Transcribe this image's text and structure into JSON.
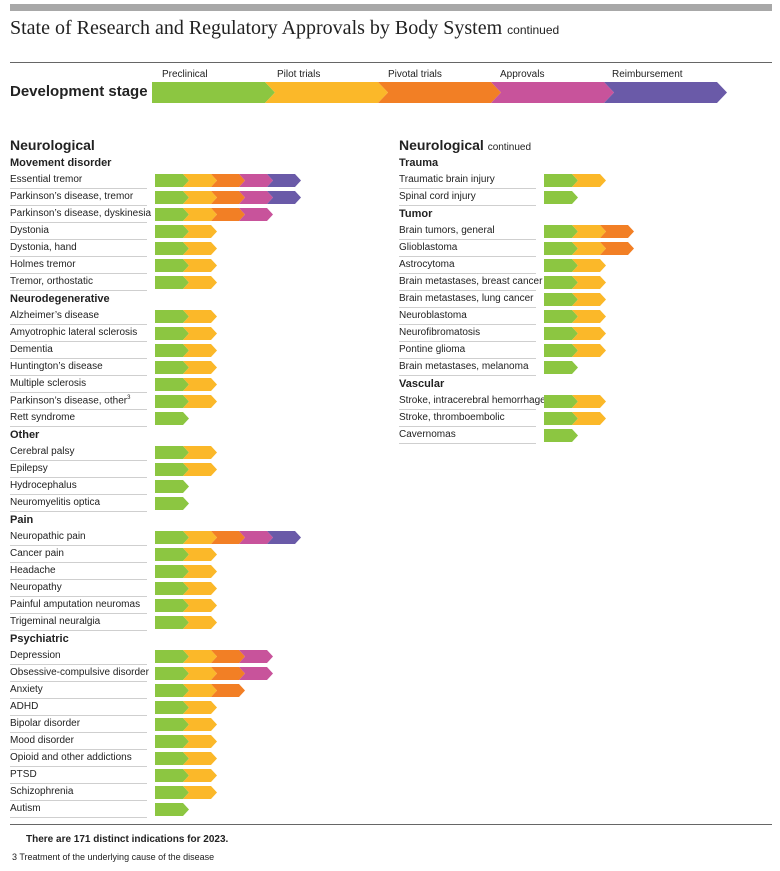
{
  "title": "State of Research and Regulatory Approvals by Body System",
  "title_suffix": "continued",
  "dev_stage_label": "Development stage",
  "stages": [
    {
      "label": "Preclinical",
      "color": "#8cc641"
    },
    {
      "label": "Pilot trials",
      "color": "#fbb829"
    },
    {
      "label": "Pivotal trials",
      "color": "#f27f25"
    },
    {
      "label": "Approvals",
      "color": "#c8539b"
    },
    {
      "label": "Reimbursement",
      "color": "#6a5aa8"
    }
  ],
  "left_section": "Neurological",
  "left": [
    {
      "header": "Movement disorder",
      "rows": [
        {
          "label": "Essential tremor",
          "stage": 5
        },
        {
          "label": "Parkinson’s disease, tremor",
          "stage": 5
        },
        {
          "label": "Parkinson’s disease, dyskinesia",
          "stage": 4
        },
        {
          "label": "Dystonia",
          "stage": 2
        },
        {
          "label": "Dystonia, hand",
          "stage": 2
        },
        {
          "label": "Holmes tremor",
          "stage": 2
        },
        {
          "label": "Tremor, orthostatic",
          "stage": 2
        }
      ]
    },
    {
      "header": "Neurodegenerative",
      "rows": [
        {
          "label": "Alzheimer’s disease",
          "stage": 2
        },
        {
          "label": "Amyotrophic lateral sclerosis",
          "stage": 2
        },
        {
          "label": "Dementia",
          "stage": 2
        },
        {
          "label": "Huntington’s disease",
          "stage": 2
        },
        {
          "label": "Multiple sclerosis",
          "stage": 2
        },
        {
          "label": "Parkinson’s disease, other",
          "sup": "3",
          "stage": 2
        },
        {
          "label": "Rett syndrome",
          "stage": 1
        }
      ]
    },
    {
      "header": "Other",
      "rows": [
        {
          "label": "Cerebral palsy",
          "stage": 2
        },
        {
          "label": "Epilepsy",
          "stage": 2
        },
        {
          "label": "Hydrocephalus",
          "stage": 1
        },
        {
          "label": "Neuromyelitis optica",
          "stage": 1
        }
      ]
    },
    {
      "header": "Pain",
      "rows": [
        {
          "label": "Neuropathic pain",
          "stage": 5
        },
        {
          "label": "Cancer pain",
          "stage": 2
        },
        {
          "label": "Headache",
          "stage": 2
        },
        {
          "label": "Neuropathy",
          "stage": 2
        },
        {
          "label": "Painful amputation neuromas",
          "stage": 2
        },
        {
          "label": "Trigeminal neuralgia",
          "stage": 2
        }
      ]
    },
    {
      "header": "Psychiatric",
      "rows": [
        {
          "label": "Depression",
          "stage": 4
        },
        {
          "label": "Obsessive-compulsive disorder",
          "stage": 4
        },
        {
          "label": "Anxiety",
          "stage": 3
        },
        {
          "label": "ADHD",
          "stage": 2
        },
        {
          "label": "Bipolar disorder",
          "stage": 2
        },
        {
          "label": "Mood disorder",
          "stage": 2
        },
        {
          "label": "Opioid and other addictions",
          "stage": 2
        },
        {
          "label": "PTSD",
          "stage": 2
        },
        {
          "label": "Schizophrenia",
          "stage": 2
        },
        {
          "label": "Autism",
          "stage": 1
        }
      ]
    }
  ],
  "right_section": "Neurological",
  "right_section_suffix": "continued",
  "right": [
    {
      "header": "Trauma",
      "rows": [
        {
          "label": "Traumatic brain injury",
          "stage": 2
        },
        {
          "label": "Spinal cord injury",
          "stage": 1
        }
      ]
    },
    {
      "header": "Tumor",
      "rows": [
        {
          "label": "Brain tumors, general",
          "stage": 3
        },
        {
          "label": "Glioblastoma",
          "stage": 3
        },
        {
          "label": "Astrocytoma",
          "stage": 2
        },
        {
          "label": "Brain metastases, breast cancer",
          "stage": 2
        },
        {
          "label": "Brain metastases, lung cancer",
          "stage": 2
        },
        {
          "label": "Neuroblastoma",
          "stage": 2
        },
        {
          "label": "Neurofibromatosis",
          "stage": 2
        },
        {
          "label": "Pontine glioma",
          "stage": 2
        },
        {
          "label": "Brain metastases, melanoma",
          "stage": 1
        }
      ]
    },
    {
      "header": "Vascular",
      "rows": [
        {
          "label": "Stroke, intracerebral hemorrhage",
          "stage": 2
        },
        {
          "label": "Stroke, thromboembolic",
          "stage": 2
        },
        {
          "label": "Cavernomas",
          "stage": 1
        }
      ]
    }
  ],
  "total_note": "There are 171 distinct indications for 2023.",
  "footnote": "3  Treatment of the underlying cause of the disease"
}
